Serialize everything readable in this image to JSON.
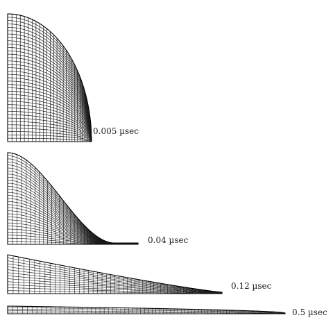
{
  "stages": [
    {
      "time_label": "0.005 µsec"
    },
    {
      "time_label": "0.04 µsec"
    },
    {
      "time_label": "0.12 µsec"
    },
    {
      "time_label": "0.5 µsec"
    }
  ]
}
